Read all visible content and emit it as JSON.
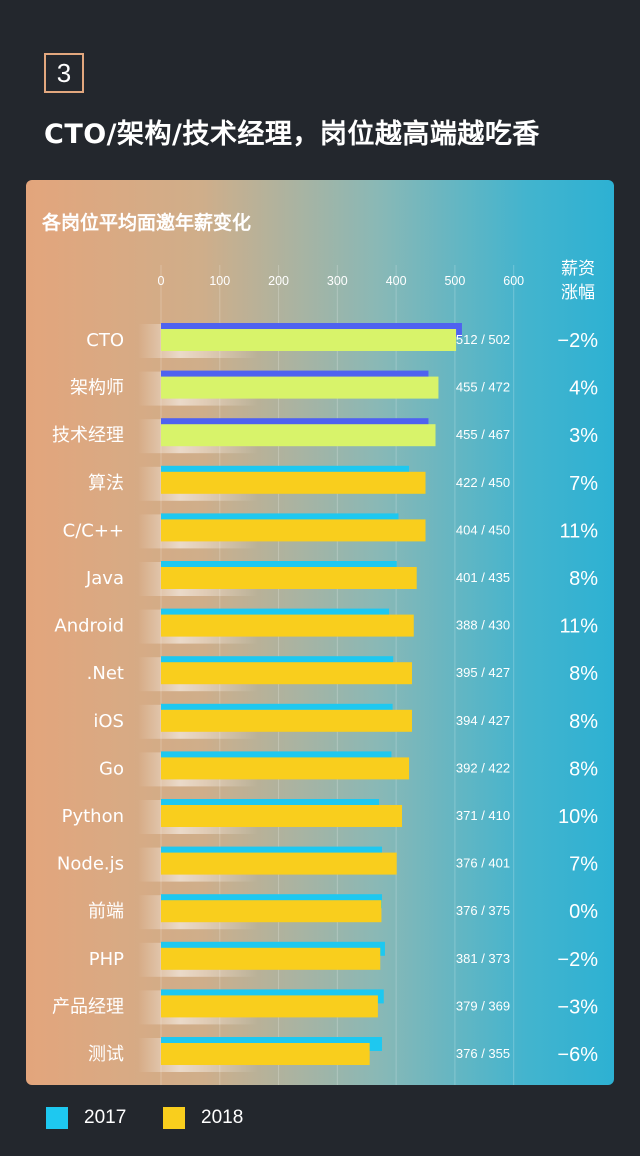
{
  "badge_number": "3",
  "headline": "CTO/架构/技术经理，岗位越高端越吃香",
  "chart_data": {
    "type": "bar",
    "title": "各岗位平均面邀年薪变化",
    "xlim": [
      0,
      600
    ],
    "x_ticks": [
      "0",
      "100",
      "200",
      "300",
      "400",
      "500",
      "600"
    ],
    "change_header": [
      "薪资",
      "涨幅"
    ],
    "categories": [
      "CTO",
      "架构师",
      "技术经理",
      "算法",
      "C/C++",
      "Java",
      "Android",
      ".Net",
      "iOS",
      "Go",
      "Python",
      "Node.js",
      "前端",
      "PHP",
      "产品经理",
      "测试"
    ],
    "series": [
      {
        "name": "2017",
        "color": "#1ec8f0",
        "values": [
          512,
          455,
          455,
          422,
          404,
          401,
          388,
          395,
          394,
          392,
          371,
          376,
          376,
          381,
          379,
          376
        ]
      },
      {
        "name": "2018",
        "color": "#f9ce1d",
        "values": [
          502,
          472,
          467,
          450,
          450,
          435,
          430,
          427,
          427,
          422,
          410,
          401,
          375,
          373,
          369,
          355
        ]
      }
    ],
    "value_labels": [
      "512 / 502",
      "455 / 472",
      "455 / 467",
      "422 / 450",
      "404 / 450",
      "401 / 435",
      "388 / 430",
      "395 / 427",
      "394 / 427",
      "392 / 422",
      "371 / 410",
      "376 / 401",
      "376 / 375",
      "381 / 373",
      "379 / 369",
      "376 / 355"
    ],
    "change": [
      "−2%",
      "4%",
      "3%",
      "7%",
      "11%",
      "8%",
      "11%",
      "8%",
      "8%",
      "8%",
      "10%",
      "7%",
      "0%",
      "−2%",
      "−3%",
      "−6%"
    ],
    "highlight_count": 3,
    "highlight_colors": {
      "2017": "#4f62f0",
      "2018": "#d8f36a"
    }
  },
  "legend": [
    {
      "label": "2017",
      "color": "#1ec8f0"
    },
    {
      "label": "2018",
      "color": "#f9ce1d"
    }
  ]
}
